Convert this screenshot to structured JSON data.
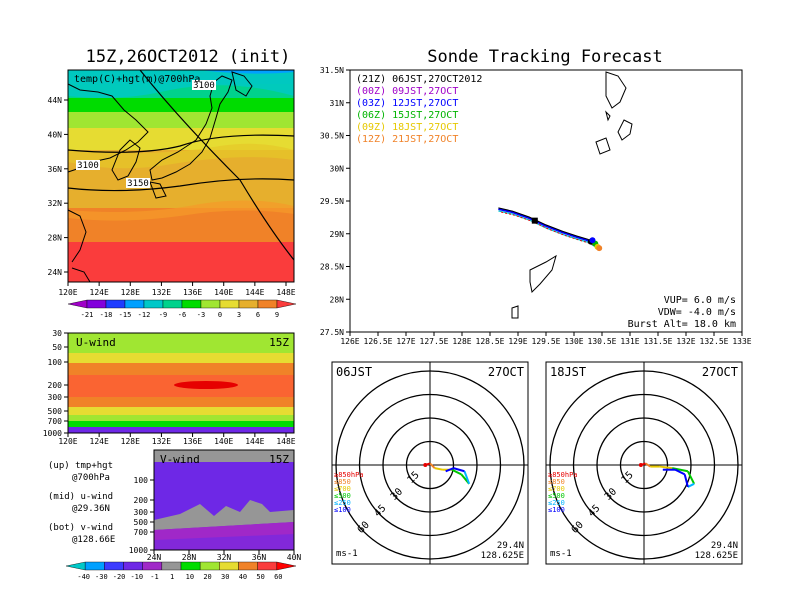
{
  "left_title": "15Z,26OCT2012 (init)",
  "right_title": "Sonde Tracking Forecast",
  "colors": {
    "temp_scale": [
      "#a000c8",
      "#8200dc",
      "#1e3cff",
      "#00a0ff",
      "#00c8c8",
      "#00d28c",
      "#00dc00",
      "#a0e632",
      "#e6dc32",
      "#e6af2d",
      "#f08228",
      "#fa3c3c"
    ],
    "wind_scale": [
      "#00c8c8",
      "#00a0ff",
      "#3c3cff",
      "#6e28e6",
      "#a028c8",
      "#969696",
      "#00dc00",
      "#a0e632",
      "#e6dc32",
      "#f08228",
      "#fa3c3c",
      "#ff0000"
    ],
    "track_red": "#e60000",
    "track_blue": "#0000ff"
  },
  "map": {
    "label": "temp(C)+hgt(m)@700hPa",
    "x_ticks": [
      "120E",
      "124E",
      "128E",
      "132E",
      "136E",
      "140E",
      "144E",
      "148E"
    ],
    "y_ticks": [
      "44N",
      "40N",
      "36N",
      "32N",
      "28N",
      "24N"
    ],
    "contours": [
      "3100",
      "3100",
      "3150"
    ],
    "colorbar_labels": [
      "-21",
      "-18",
      "-15",
      "-12",
      "-9",
      "-6",
      "-3",
      "0",
      "3",
      "6",
      "9"
    ]
  },
  "u_panel": {
    "label": "U-wind",
    "time": "15Z",
    "y_ticks": [
      "30",
      "50",
      "100",
      "200",
      "300",
      "500",
      "700",
      "1000"
    ],
    "x_ticks": [
      "120E",
      "124E",
      "128E",
      "132E",
      "136E",
      "140E",
      "144E",
      "148E"
    ]
  },
  "v_panel": {
    "label": "V-wind",
    "time": "15Z",
    "y_ticks": [
      "100",
      "200",
      "300",
      "500",
      "700",
      "1000"
    ],
    "x_ticks": [
      "24N",
      "28N",
      "32N",
      "36N",
      "40N"
    ],
    "colorbar_labels": [
      "-40",
      "-30",
      "-20",
      "-10",
      "-1",
      "1",
      "10",
      "20",
      "30",
      "40",
      "50",
      "60"
    ]
  },
  "legend_notes": [
    {
      "line1": "(up) tmp+hgt",
      "line2": "@700hPa"
    },
    {
      "line1": "(mid) u-wind",
      "line2": "@29.36N"
    },
    {
      "line1": "(bot) v-wind",
      "line2": "@128.66E"
    }
  ],
  "track": {
    "times": [
      {
        "text": "(21Z) 06JST,27OCT2012",
        "color": "#000000"
      },
      {
        "text": "(00Z) 09JST,27OCT",
        "color": "#a000c8"
      },
      {
        "text": "(03Z) 12JST,27OCT",
        "color": "#0000ff"
      },
      {
        "text": "(06Z) 15JST,27OCT",
        "color": "#00b400"
      },
      {
        "text": "(09Z) 18JST,27OCT",
        "color": "#e6c800"
      },
      {
        "text": "(12Z) 21JST,27OCT",
        "color": "#f08228"
      }
    ],
    "x_ticks": [
      "126E",
      "126.5E",
      "127E",
      "127.5E",
      "128E",
      "128.5E",
      "129E",
      "129.5E",
      "130E",
      "130.5E",
      "131E",
      "131.5E",
      "132E",
      "132.5E",
      "133E"
    ],
    "y_ticks": [
      "31.5N",
      "31N",
      "30.5N",
      "30N",
      "29.5N",
      "29N",
      "28.5N",
      "28N",
      "27.5N"
    ],
    "vup": "VUP= 6.0 m/s",
    "vdw": "VDW= -4.0 m/s",
    "burst": "Burst Alt= 18.0 km"
  },
  "chart_data": [
    {
      "type": "line",
      "title": "Sonde Tracking Forecast",
      "xlim": [
        126,
        133
      ],
      "ylim": [
        27.5,
        31.5
      ],
      "series": [
        {
          "values": [
            [
              128.65,
              29.38
            ],
            [
              128.9,
              29.33
            ],
            [
              129.2,
              29.24
            ],
            [
              129.5,
              29.12
            ],
            [
              129.8,
              29.02
            ],
            [
              130.05,
              28.95
            ],
            [
              130.25,
              28.9
            ],
            [
              130.4,
              28.82
            ]
          ]
        }
      ]
    },
    {
      "type": "line",
      "title": "",
      "hodographs": [
        {
          "time": "06JST",
          "date": "27OCT",
          "lat": "29.4N",
          "lon": "128.625E",
          "unit": "ms-1",
          "rings": [
            "15",
            "30",
            "45",
            "60"
          ],
          "levels": [
            {
              "label": "≥850hPa",
              "color": "#e60000"
            },
            {
              "label": "≤850",
              "color": "#f08228"
            },
            {
              "label": "≤700",
              "color": "#e6c800"
            },
            {
              "label": "≤500",
              "color": "#00c800"
            },
            {
              "label": "≤250",
              "color": "#00b4ff"
            },
            {
              "label": "≤100",
              "color": "#0000ff"
            }
          ],
          "path": [
            [
              -3,
              0
            ],
            [
              0,
              1
            ],
            [
              3,
              -2
            ],
            [
              8,
              -3
            ],
            [
              14,
              -3
            ],
            [
              20,
              -6
            ],
            [
              25,
              -12
            ],
            [
              22,
              -4
            ],
            [
              15,
              -2
            ],
            [
              10,
              -4
            ]
          ]
        },
        {
          "time": "18JST",
          "date": "27OCT",
          "lat": "29.4N",
          "lon": "128.625E",
          "unit": "ms-1",
          "rings": [
            "15",
            "30",
            "45",
            "60"
          ],
          "levels": [
            {
              "label": "≥850hPa",
              "color": "#e60000"
            },
            {
              "label": "≤850",
              "color": "#f08228"
            },
            {
              "label": "≤700",
              "color": "#e6c800"
            },
            {
              "label": "≤500",
              "color": "#00c800"
            },
            {
              "label": "≤250",
              "color": "#00b4ff"
            },
            {
              "label": "≤100",
              "color": "#0000ff"
            }
          ],
          "path": [
            [
              -2,
              0
            ],
            [
              1,
              1
            ],
            [
              4,
              -1
            ],
            [
              10,
              -1
            ],
            [
              18,
              -2
            ],
            [
              28,
              -4
            ],
            [
              32,
              -12
            ],
            [
              28,
              -14
            ],
            [
              26,
              -6
            ],
            [
              20,
              -3
            ],
            [
              12,
              -3
            ]
          ]
        }
      ]
    }
  ]
}
